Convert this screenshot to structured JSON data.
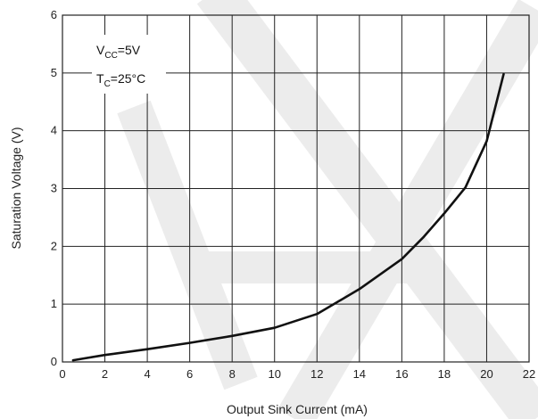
{
  "chart_data": {
    "type": "line",
    "xlabel": "Output Sink Current (mA)",
    "ylabel": "Saturation Voltage (V)",
    "xlim": [
      0,
      22
    ],
    "ylim": [
      0,
      6
    ],
    "x_ticks": [
      "0",
      "2",
      "4",
      "6",
      "8",
      "10",
      "12",
      "14",
      "16",
      "18",
      "20",
      "22"
    ],
    "y_ticks": [
      "0",
      "1",
      "2",
      "3",
      "4",
      "5",
      "6"
    ],
    "grid": true,
    "annotations": [
      {
        "prefix": "V",
        "sub": "CC",
        "suffix": "=5V"
      },
      {
        "prefix": "T",
        "sub": "C",
        "suffix": "=25°C"
      }
    ],
    "series": [
      {
        "x": [
          0.5,
          1,
          2,
          4,
          6,
          8,
          10,
          12,
          14,
          16,
          17,
          18,
          19,
          20,
          20.4,
          20.8
        ],
        "y": [
          0.03,
          0.06,
          0.12,
          0.22,
          0.33,
          0.45,
          0.59,
          0.83,
          1.26,
          1.78,
          2.15,
          2.57,
          3.02,
          3.82,
          4.4,
          4.98
        ]
      }
    ],
    "colors": {
      "line": "#111111",
      "grid": "#222222",
      "watermark": "#d6d6d6"
    }
  }
}
